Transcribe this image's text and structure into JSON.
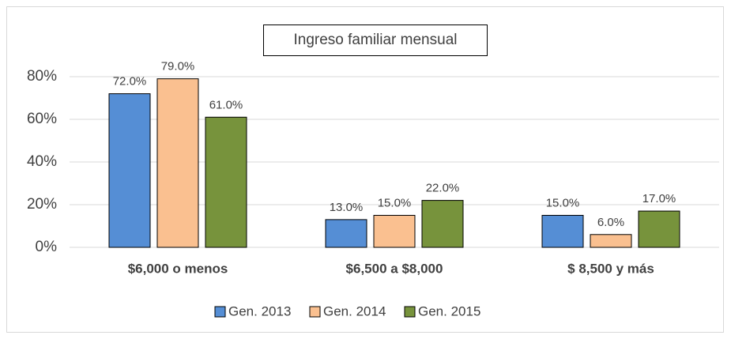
{
  "chart_data": {
    "type": "bar",
    "title": "Ingreso familiar mensual",
    "categories": [
      "$6,000 o menos",
      "$6,500 a $8,000",
      "$ 8,500 y más"
    ],
    "series": [
      {
        "name": "Gen. 2013",
        "color": "#558ed5",
        "values": [
          72,
          13,
          15
        ],
        "value_labels": [
          "72.0%",
          "13.0%",
          "15.0%"
        ]
      },
      {
        "name": "Gen. 2014",
        "color": "#fac090",
        "values": [
          79,
          15,
          6
        ],
        "value_labels": [
          "79.0%",
          "15.0%",
          "6.0%"
        ]
      },
      {
        "name": "Gen. 2015",
        "color": "#77933c",
        "values": [
          61,
          22,
          17
        ],
        "value_labels": [
          "61.0%",
          "22.0%",
          "17.0%"
        ]
      }
    ],
    "ylim": [
      0,
      80
    ],
    "yticks": [
      {
        "value": 0,
        "label": "0%"
      },
      {
        "value": 20,
        "label": "20%"
      },
      {
        "value": 40,
        "label": "40%"
      },
      {
        "value": 60,
        "label": "60%"
      },
      {
        "value": 80,
        "label": "80%"
      }
    ],
    "grid": true,
    "legend": "bottom"
  }
}
